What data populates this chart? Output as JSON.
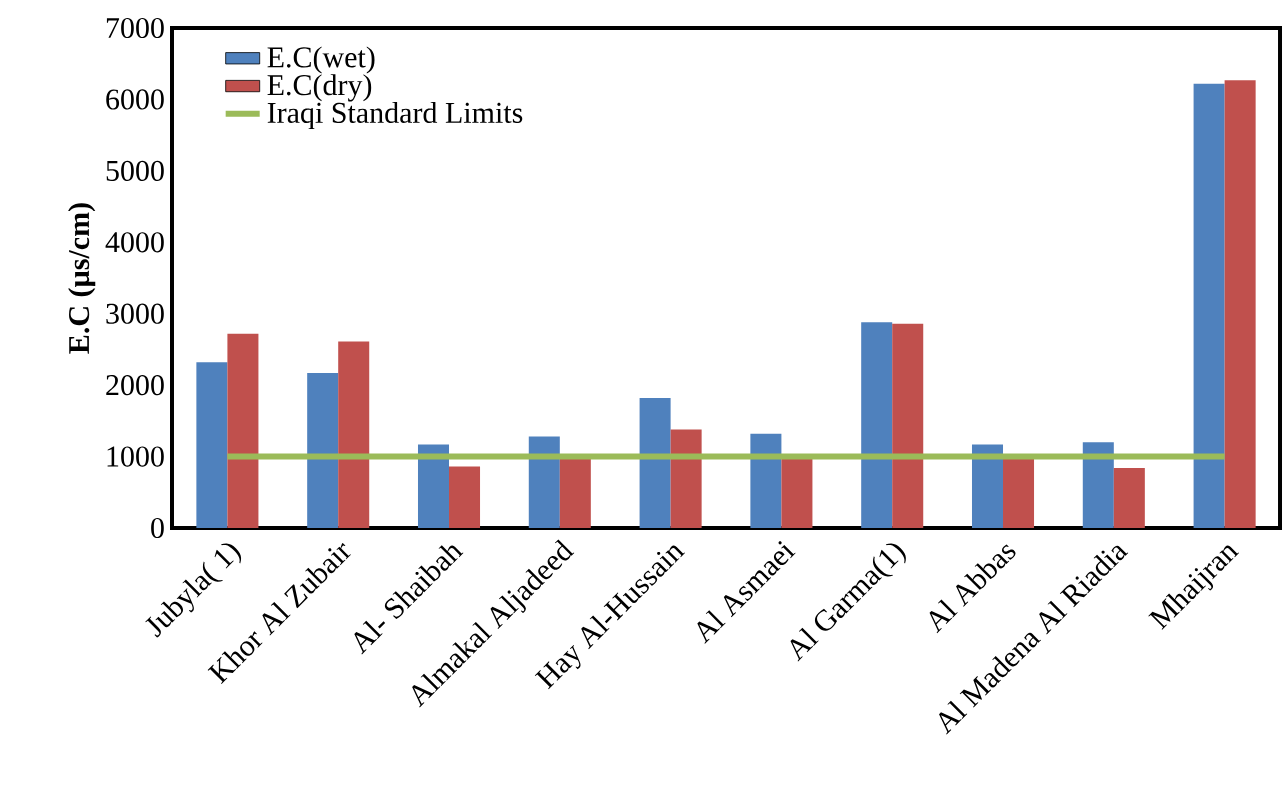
{
  "chart_data": {
    "type": "bar",
    "ylabel": "E.C (µs/cm)",
    "categories": [
      "Jubyla( 1)",
      "Khor Al Zubair",
      "Al- Shaibah",
      "Almakal Aljadeed",
      "Hay Al-Hussain",
      "Al Asmaei",
      "Al Garma(1)",
      "Al Abbas",
      "Al Madena Al Riadia",
      "Mhaijran"
    ],
    "series": [
      {
        "name": "E.C(wet)",
        "color": "#4f81bd",
        "values": [
          2320,
          2170,
          1170,
          1280,
          1820,
          1320,
          2880,
          1170,
          1200,
          6220
        ]
      },
      {
        "name": "E.C(dry)",
        "color": "#c0504d",
        "values": [
          2720,
          2610,
          860,
          1000,
          1380,
          1000,
          2860,
          1000,
          840,
          6270
        ]
      },
      {
        "name": "Iraqi Standard Limits",
        "type": "line",
        "color": "#9bbb59",
        "values": [
          1000,
          1000,
          1000,
          1000,
          1000,
          1000,
          1000,
          1000,
          1000,
          1000
        ]
      }
    ],
    "ylim": [
      0,
      7000
    ],
    "yticks": [
      0,
      1000,
      2000,
      3000,
      4000,
      5000,
      6000,
      7000
    ],
    "legend": "top left",
    "grid": false
  }
}
